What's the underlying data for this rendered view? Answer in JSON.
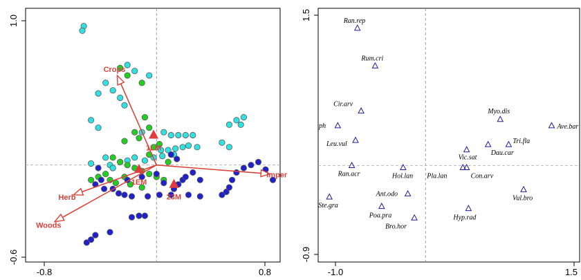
{
  "chart_data": [
    {
      "type": "scatter",
      "title": "",
      "xlabel": "",
      "ylabel": "",
      "xlim": [
        -0.9,
        0.85
      ],
      "ylim": [
        -0.65,
        1.05
      ],
      "ticks": {
        "x": [
          "-0.8",
          "0.8"
        ],
        "y": [
          "-0.6",
          "1.0"
        ]
      },
      "axis_lines_at_zero": true,
      "series": [
        {
          "color": "#2121c9",
          "points": [
            [
              -0.48,
              -0.52
            ],
            [
              -0.45,
              -0.5
            ],
            [
              -0.42,
              -0.47
            ],
            [
              -0.32,
              -0.45
            ],
            [
              -0.17,
              -0.35
            ],
            [
              -0.12,
              -0.34
            ],
            [
              -0.08,
              -0.34
            ],
            [
              -0.36,
              -0.16
            ],
            [
              -0.3,
              -0.16
            ],
            [
              -0.26,
              -0.19
            ],
            [
              -0.22,
              -0.2
            ],
            [
              -0.17,
              -0.21
            ],
            [
              -0.06,
              -0.21
            ],
            [
              0.02,
              -0.2
            ],
            [
              0.1,
              -0.2
            ],
            [
              0.22,
              -0.2
            ],
            [
              0.3,
              -0.21
            ],
            [
              0.12,
              -0.16
            ],
            [
              0.15,
              -0.13
            ],
            [
              0.18,
              -0.1
            ],
            [
              0.45,
              -0.2
            ],
            [
              0.48,
              -0.18
            ],
            [
              0.5,
              -0.15
            ],
            [
              0.52,
              -0.1
            ],
            [
              0.55,
              -0.05
            ],
            [
              0.6,
              -0.02
            ],
            [
              0.65,
              0.0
            ],
            [
              0.7,
              0.02
            ],
            [
              0.75,
              -0.03
            ],
            [
              0.8,
              -0.1
            ],
            [
              0.2,
              -0.08
            ],
            [
              0.14,
              0.04
            ],
            [
              0.1,
              0.07
            ],
            [
              -0.4,
              -0.02
            ],
            [
              -0.38,
              -0.1
            ],
            [
              -0.42,
              -0.13
            ],
            [
              -0.2,
              -0.1
            ],
            [
              -0.1,
              -0.08
            ],
            [
              0.0,
              -0.06
            ],
            [
              0.25,
              -0.05
            ],
            [
              0.3,
              -0.1
            ],
            [
              0.05,
              -0.12
            ]
          ]
        },
        {
          "color": "#22ce22",
          "points": [
            [
              -0.25,
              0.65
            ],
            [
              -0.2,
              0.6
            ],
            [
              -0.1,
              0.55
            ],
            [
              -0.08,
              0.32
            ],
            [
              -0.05,
              0.25
            ],
            [
              -0.15,
              0.22
            ],
            [
              -0.12,
              0.18
            ],
            [
              -0.22,
              0.16
            ],
            [
              -0.02,
              0.12
            ],
            [
              0.02,
              0.14
            ],
            [
              -0.3,
              0.05
            ],
            [
              -0.25,
              0.02
            ],
            [
              -0.2,
              0.0
            ],
            [
              -0.15,
              -0.02
            ],
            [
              -0.1,
              -0.04
            ],
            [
              -0.35,
              -0.06
            ],
            [
              -0.4,
              -0.08
            ],
            [
              -0.45,
              -0.1
            ],
            [
              -0.32,
              -0.1
            ],
            [
              -0.28,
              -0.12
            ],
            [
              -0.05,
              -0.06
            ],
            [
              0.0,
              -0.08
            ],
            [
              0.05,
              -0.1
            ],
            [
              -0.18,
              -0.13
            ],
            [
              0.08,
              0.02
            ],
            [
              -0.05,
              0.07
            ],
            [
              -0.1,
              -0.15
            ],
            [
              -0.22,
              -0.08
            ]
          ]
        },
        {
          "color": "#33e0e0",
          "points": [
            [
              -0.5,
              0.93
            ],
            [
              -0.51,
              0.9
            ],
            [
              -0.2,
              0.67
            ],
            [
              -0.15,
              0.63
            ],
            [
              -0.05,
              0.6
            ],
            [
              -0.22,
              0.4
            ],
            [
              -0.25,
              0.45
            ],
            [
              -0.3,
              0.5
            ],
            [
              -0.35,
              0.55
            ],
            [
              -0.4,
              0.48
            ],
            [
              -0.45,
              0.3
            ],
            [
              -0.4,
              0.25
            ],
            [
              -0.1,
              0.22
            ],
            [
              0.05,
              0.22
            ],
            [
              0.1,
              0.2
            ],
            [
              0.15,
              0.2
            ],
            [
              0.2,
              0.2
            ],
            [
              0.25,
              0.2
            ],
            [
              0.0,
              0.12
            ],
            [
              0.03,
              0.1
            ],
            [
              0.08,
              0.1
            ],
            [
              0.13,
              0.11
            ],
            [
              0.18,
              0.12
            ],
            [
              0.22,
              0.13
            ],
            [
              0.28,
              0.12
            ],
            [
              -0.02,
              0.05
            ],
            [
              0.04,
              0.06
            ],
            [
              0.12,
              0.07
            ],
            [
              -0.35,
              0.05
            ],
            [
              -0.32,
              0.0
            ],
            [
              -0.3,
              -0.02
            ],
            [
              -0.2,
              0.03
            ],
            [
              -0.25,
              0.02
            ],
            [
              0.55,
              0.3
            ],
            [
              0.58,
              0.27
            ],
            [
              0.6,
              0.32
            ],
            [
              0.5,
              0.27
            ],
            [
              -0.15,
              0.05
            ],
            [
              -0.08,
              0.03
            ],
            [
              0.45,
              0.15
            ],
            [
              0.5,
              0.12
            ],
            [
              -0.45,
              0.01
            ]
          ]
        }
      ],
      "vectors": [
        {
          "label": "Crops",
          "x": -0.27,
          "y": 0.6
        },
        {
          "label": "Imper",
          "x": 0.78,
          "y": -0.06
        },
        {
          "label": "Herb",
          "x": -0.57,
          "y": -0.2
        },
        {
          "label": "Woods",
          "x": -0.7,
          "y": -0.38
        }
      ],
      "centroids": [
        {
          "label": "1LM",
          "x": -0.02,
          "y": 0.2
        },
        {
          "label": "1EM",
          "x": -0.12,
          "y": -0.03
        },
        {
          "label": "23M",
          "x": 0.12,
          "y": -0.13
        }
      ],
      "colors": {
        "vector": "#d9433b",
        "centroid": "#e03c3c",
        "outline": "#5a5a5a"
      }
    },
    {
      "type": "scatter",
      "title": "",
      "xlabel": "",
      "ylabel": "",
      "xlim": [
        -1.15,
        1.65
      ],
      "ylim": [
        -0.92,
        1.5
      ],
      "ticks": {
        "x": [
          "-1.0",
          "1.5"
        ],
        "y": [
          "-0.9",
          "1.5"
        ]
      },
      "axis_lines_at_zero": true,
      "species": [
        {
          "label": "Ran.rep",
          "x": -0.73,
          "y": 1.31
        },
        {
          "label": "Rum.cri",
          "x": -0.54,
          "y": 0.95
        },
        {
          "label": "Cir.arv",
          "x": -0.69,
          "y": 0.52
        },
        {
          "label": "Her.sph",
          "x": -0.94,
          "y": 0.38
        },
        {
          "label": "Leu.vul",
          "x": -0.75,
          "y": 0.24
        },
        {
          "label": "Ran.acr",
          "x": -0.79,
          "y": 0.0
        },
        {
          "label": "Hol.lan",
          "x": -0.24,
          "y": -0.02
        },
        {
          "label": "Pla.lan",
          "x": 0.4,
          "y": -0.02
        },
        {
          "label": "Con.arv",
          "x": 0.44,
          "y": -0.02
        },
        {
          "label": "Vic.sat",
          "x": 0.44,
          "y": 0.15
        },
        {
          "label": "Dau.car",
          "x": 0.67,
          "y": 0.2
        },
        {
          "label": "Tri.fla",
          "x": 0.89,
          "y": 0.2
        },
        {
          "label": "Myo.dis",
          "x": 0.8,
          "y": 0.44
        },
        {
          "label": "Ave.bar",
          "x": 1.35,
          "y": 0.38
        },
        {
          "label": "Ant.odo",
          "x": -0.19,
          "y": -0.27
        },
        {
          "label": "Ste.gra",
          "x": -1.03,
          "y": -0.3
        },
        {
          "label": "Poa.pra",
          "x": -0.47,
          "y": -0.39
        },
        {
          "label": "Bro.hor",
          "x": -0.12,
          "y": -0.5
        },
        {
          "label": "Hyp.rad",
          "x": 0.46,
          "y": -0.41
        },
        {
          "label": "Vul.bro",
          "x": 1.05,
          "y": -0.23
        }
      ],
      "colors": {
        "marker": "#1f1f9c"
      }
    }
  ]
}
